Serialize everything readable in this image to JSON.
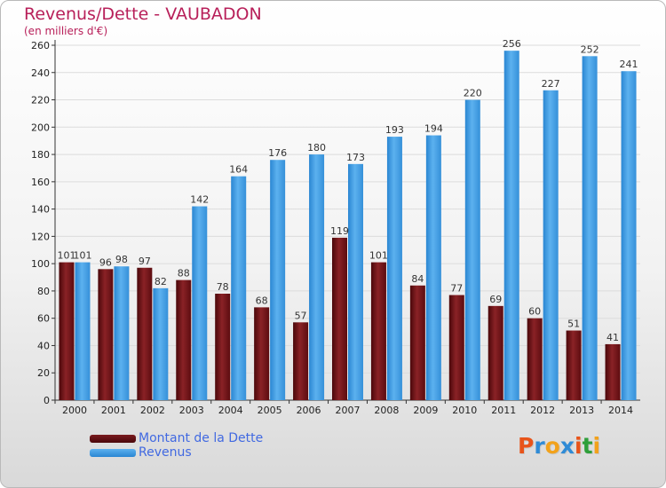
{
  "chart_data": {
    "type": "bar",
    "title": "Revenus/Dette - VAUBADON",
    "subtitle": "(en milliers d'€)",
    "categories": [
      "2000",
      "2001",
      "2002",
      "2003",
      "2004",
      "2005",
      "2006",
      "2007",
      "2008",
      "2009",
      "2010",
      "2011",
      "2012",
      "2013",
      "2014"
    ],
    "series": [
      {
        "name": "Montant de la Dette",
        "values": [
          101,
          96,
          97,
          88,
          78,
          68,
          57,
          119,
          101,
          84,
          77,
          69,
          60,
          51,
          41
        ],
        "color": "#6b0f12"
      },
      {
        "name": "Revenus",
        "values": [
          101,
          98,
          82,
          142,
          164,
          176,
          180,
          173,
          193,
          194,
          220,
          256,
          227,
          252,
          241
        ],
        "color": "#3a9ae3"
      }
    ],
    "yticks": [
      "0",
      "20",
      "40",
      "60",
      "80",
      "100",
      "120",
      "140",
      "160",
      "180",
      "200",
      "220",
      "240",
      "260"
    ],
    "ylim": [
      0,
      260
    ],
    "grid": true,
    "legend_position": "bottom-left"
  },
  "logo": {
    "text": "Proxiti",
    "colors": [
      "#e8541a",
      "#2f8bd6",
      "#f2a21b",
      "#2f8bd6",
      "#e8541a",
      "#2e9f3a",
      "#f2a21b"
    ]
  }
}
